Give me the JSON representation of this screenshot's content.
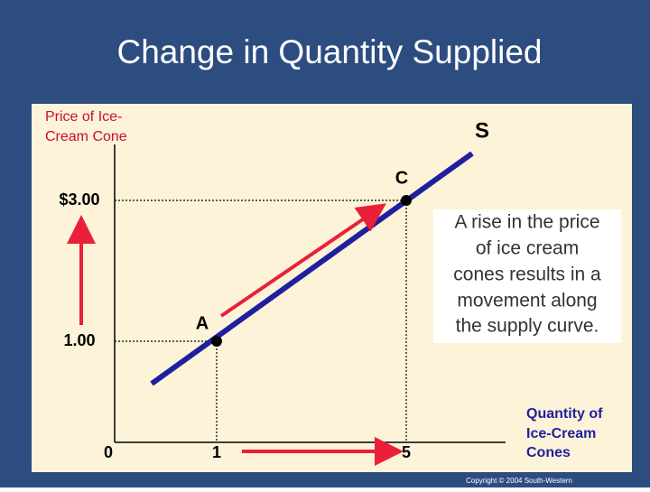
{
  "title": "Change in Quantity Supplied",
  "diagram": {
    "y_axis_label": [
      "Price of Ice-",
      "Cream Cone"
    ],
    "x_axis_label": [
      "Quantity of",
      "Ice-Cream",
      "Cones"
    ],
    "curve_label": "S",
    "points": [
      {
        "label": "A"
      },
      {
        "label": "C"
      }
    ],
    "price_labels": [
      "$3.00",
      "1.00"
    ],
    "quantity_labels": [
      "0",
      "1",
      "5"
    ],
    "annotation": [
      "A rise in the price",
      "of ice cream",
      "cones results in a",
      "movement along",
      "the supply curve."
    ]
  },
  "copyright": "Copyright © 2004 South-Western"
}
